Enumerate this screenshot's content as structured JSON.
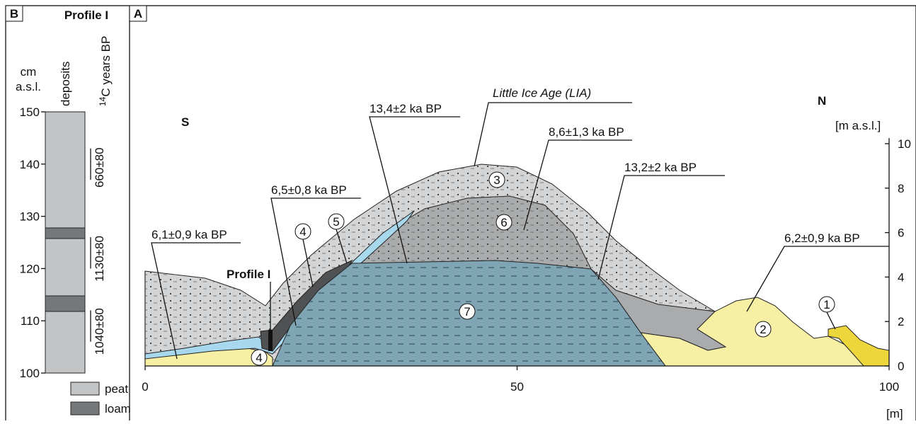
{
  "panel_b": {
    "label": "B",
    "title": "Profile I",
    "axis_label_top": "cm",
    "axis_label_bottom": "a.s.l.",
    "column_header": "deposits",
    "date_header_sup": "14",
    "date_header": "C years BP",
    "yticks": [
      150,
      140,
      130,
      120,
      110,
      100
    ],
    "dates": [
      "660±80",
      "1130±80",
      "1040±80"
    ],
    "legend": [
      "peat",
      "loam"
    ]
  },
  "panel_a": {
    "label": "A",
    "south": "S",
    "north": "N",
    "y_unit": "[m a.s.l.]",
    "x_unit": "[m]",
    "xticks": [
      0,
      50,
      100
    ],
    "yticks": [
      0,
      2,
      4,
      6,
      8,
      10
    ],
    "profile_label": "Profile I",
    "lia": "Little Ice Age  (LIA)",
    "ages": [
      "13,4±2 ka BP",
      "8,6±1,3 ka BP",
      "13,2±2 ka BP",
      "6,5±0,8 ka BP",
      "6,1±0,9 ka BP",
      "6,2±0,9 ka BP"
    ],
    "units": [
      "3",
      "6",
      "5",
      "4",
      "7",
      "4",
      "2",
      "1"
    ]
  }
}
